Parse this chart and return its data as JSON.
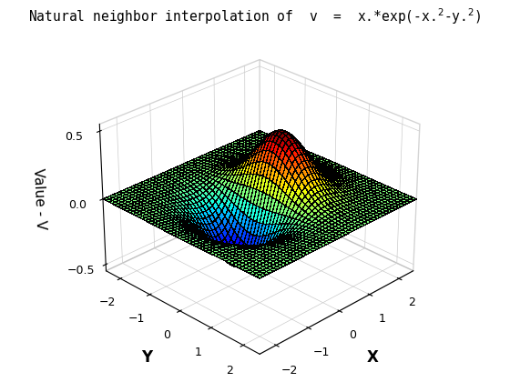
{
  "title": "Natural neighbor interpolation of v = x.*exp(-x.²-y.²)",
  "xlabel": "X",
  "ylabel": "Y",
  "zlabel": "Value - V",
  "xlim": [
    -2.5,
    2.5
  ],
  "ylim": [
    -2.5,
    2.5
  ],
  "zlim": [
    -0.55,
    0.55
  ],
  "xticks": [
    -2,
    -1,
    0,
    1,
    2
  ],
  "yticks": [
    -2,
    -1,
    0,
    1,
    2
  ],
  "zticks": [
    -0.5,
    0,
    0.5
  ],
  "n_points": 50,
  "x_range": [
    -2.5,
    2.5
  ],
  "y_range": [
    -2.5,
    2.5
  ],
  "elev": 28,
  "azim": -135,
  "pane_color": "#ffffff",
  "pane_edge_color": "#aaaaaa",
  "background_color": "#ffffff",
  "edge_linewidth": 0.15,
  "edge_color": "k"
}
